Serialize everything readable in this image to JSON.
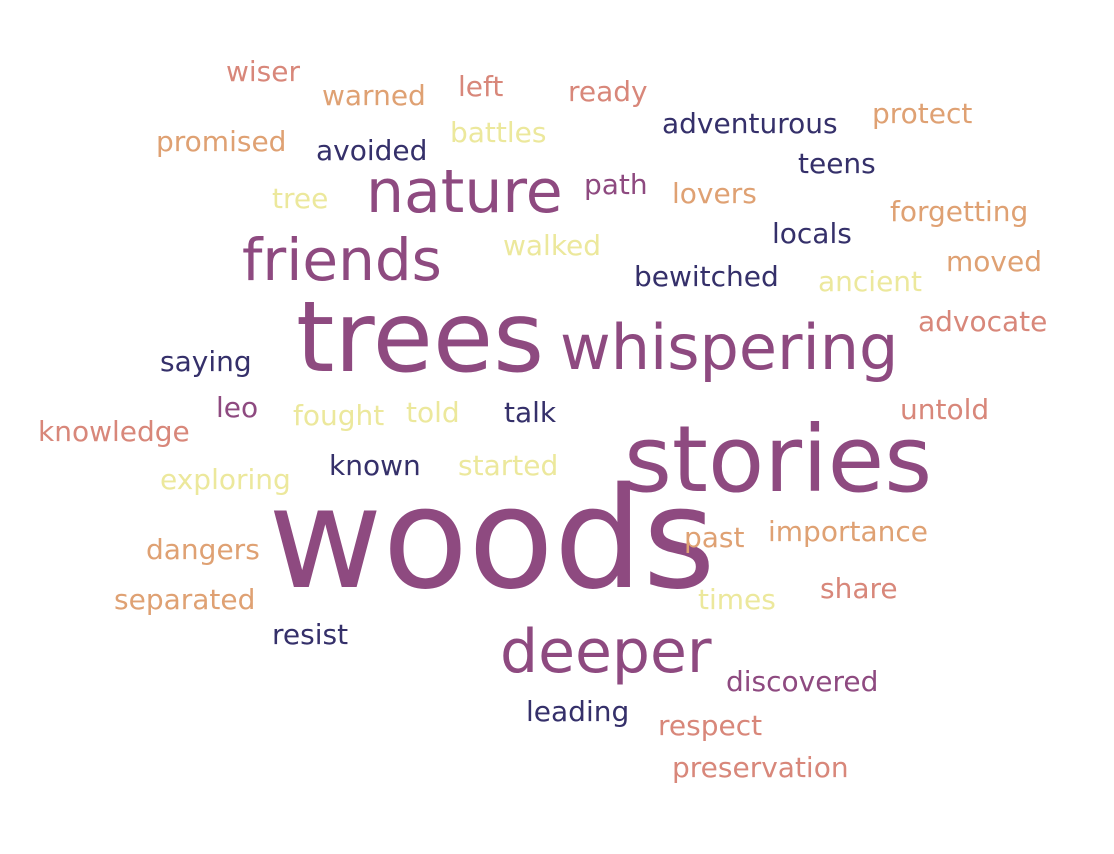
{
  "palette": {
    "navy": "#35306a",
    "plum": "#8e4a80",
    "salmon": "#d8877a",
    "peach": "#dfa173",
    "cream": "#ece89c"
  },
  "words": [
    {
      "text": "woods",
      "color": "#8e4a80"
    },
    {
      "text": "trees",
      "color": "#8e4a80"
    },
    {
      "text": "stories",
      "color": "#8e4a80"
    },
    {
      "text": "whispering",
      "color": "#8e4a80"
    },
    {
      "text": "nature",
      "color": "#8e4a80"
    },
    {
      "text": "friends",
      "color": "#8e4a80"
    },
    {
      "text": "deeper",
      "color": "#8e4a80"
    },
    {
      "text": "wiser",
      "color": "#d8877a"
    },
    {
      "text": "warned",
      "color": "#dfa173"
    },
    {
      "text": "left",
      "color": "#d8877a"
    },
    {
      "text": "ready",
      "color": "#d8877a"
    },
    {
      "text": "protect",
      "color": "#dfa173"
    },
    {
      "text": "adventurous",
      "color": "#35306a"
    },
    {
      "text": "promised",
      "color": "#dfa173"
    },
    {
      "text": "avoided",
      "color": "#35306a"
    },
    {
      "text": "battles",
      "color": "#ece89c"
    },
    {
      "text": "teens",
      "color": "#35306a"
    },
    {
      "text": "tree",
      "color": "#ece89c"
    },
    {
      "text": "path",
      "color": "#8e4a80"
    },
    {
      "text": "lovers",
      "color": "#dfa173"
    },
    {
      "text": "forgetting",
      "color": "#dfa173"
    },
    {
      "text": "walked",
      "color": "#ece89c"
    },
    {
      "text": "locals",
      "color": "#35306a"
    },
    {
      "text": "moved",
      "color": "#dfa173"
    },
    {
      "text": "bewitched",
      "color": "#35306a"
    },
    {
      "text": "ancient",
      "color": "#ece89c"
    },
    {
      "text": "advocate",
      "color": "#d8877a"
    },
    {
      "text": "saying",
      "color": "#35306a"
    },
    {
      "text": "leo",
      "color": "#8e4a80"
    },
    {
      "text": "fought",
      "color": "#ece89c"
    },
    {
      "text": "told",
      "color": "#ece89c"
    },
    {
      "text": "talk",
      "color": "#35306a"
    },
    {
      "text": "untold",
      "color": "#d8877a"
    },
    {
      "text": "knowledge",
      "color": "#d8877a"
    },
    {
      "text": "known",
      "color": "#35306a"
    },
    {
      "text": "started",
      "color": "#ece89c"
    },
    {
      "text": "exploring",
      "color": "#ece89c"
    },
    {
      "text": "dangers",
      "color": "#dfa173"
    },
    {
      "text": "past",
      "color": "#dfa173"
    },
    {
      "text": "importance",
      "color": "#dfa173"
    },
    {
      "text": "separated",
      "color": "#dfa173"
    },
    {
      "text": "times",
      "color": "#ece89c"
    },
    {
      "text": "share",
      "color": "#d8877a"
    },
    {
      "text": "resist",
      "color": "#35306a"
    },
    {
      "text": "discovered",
      "color": "#8e4a80"
    },
    {
      "text": "leading",
      "color": "#35306a"
    },
    {
      "text": "respect",
      "color": "#d8877a"
    },
    {
      "text": "preservation",
      "color": "#d8877a"
    }
  ]
}
